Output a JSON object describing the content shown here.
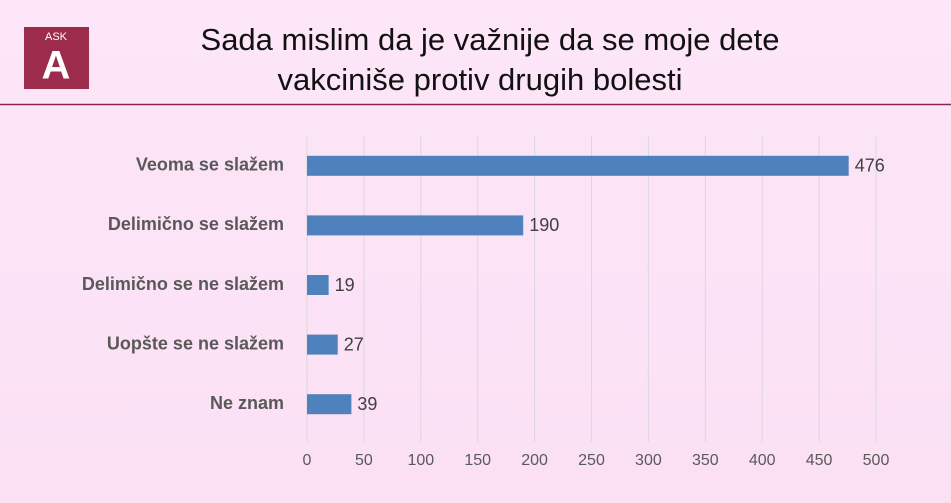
{
  "logo": {
    "text": "ASK",
    "letter": "A"
  },
  "chart_data": {
    "type": "bar",
    "orientation": "horizontal",
    "title": [
      "Sada mislim da je važnije da se moje dete",
      "vakciniše protiv drugih bolesti"
    ],
    "categories": [
      "Veoma se slažem",
      "Delimično se slažem",
      "Delimično se ne slažem",
      "Uopšte se ne slažem",
      "Ne znam"
    ],
    "values": [
      476,
      190,
      19,
      27,
      39
    ],
    "color": "#4f81bd",
    "xlim": [
      0,
      500
    ],
    "xticks": [
      0,
      50,
      100,
      150,
      200,
      250,
      300,
      350,
      400,
      450,
      500
    ],
    "grid": true
  }
}
